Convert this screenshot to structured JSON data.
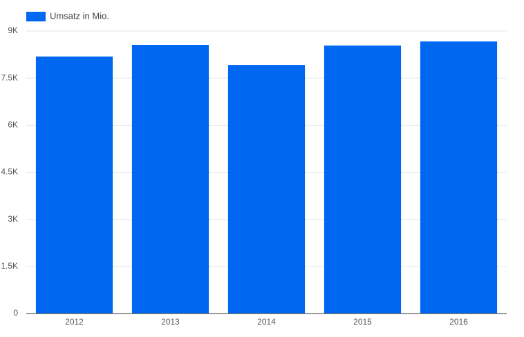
{
  "chart_data": {
    "type": "bar",
    "legend": "Umsatz in Mio.",
    "legend_position": "top-left",
    "categories": [
      "2012",
      "2013",
      "2014",
      "2015",
      "2016"
    ],
    "values": [
      8190,
      8560,
      7920,
      8540,
      8670
    ],
    "color": "#0068f0",
    "ylim": [
      0,
      9000
    ],
    "yticks": [
      0,
      {
        "value": 1500,
        "label": "1.5K"
      },
      {
        "value": 3000,
        "label": "3K"
      },
      {
        "value": 4500,
        "label": "4.5K"
      },
      {
        "value": 6000,
        "label": "6K"
      },
      {
        "value": 7500,
        "label": "7.5K"
      },
      {
        "value": 9000,
        "label": "9K"
      }
    ],
    "grid": true
  }
}
